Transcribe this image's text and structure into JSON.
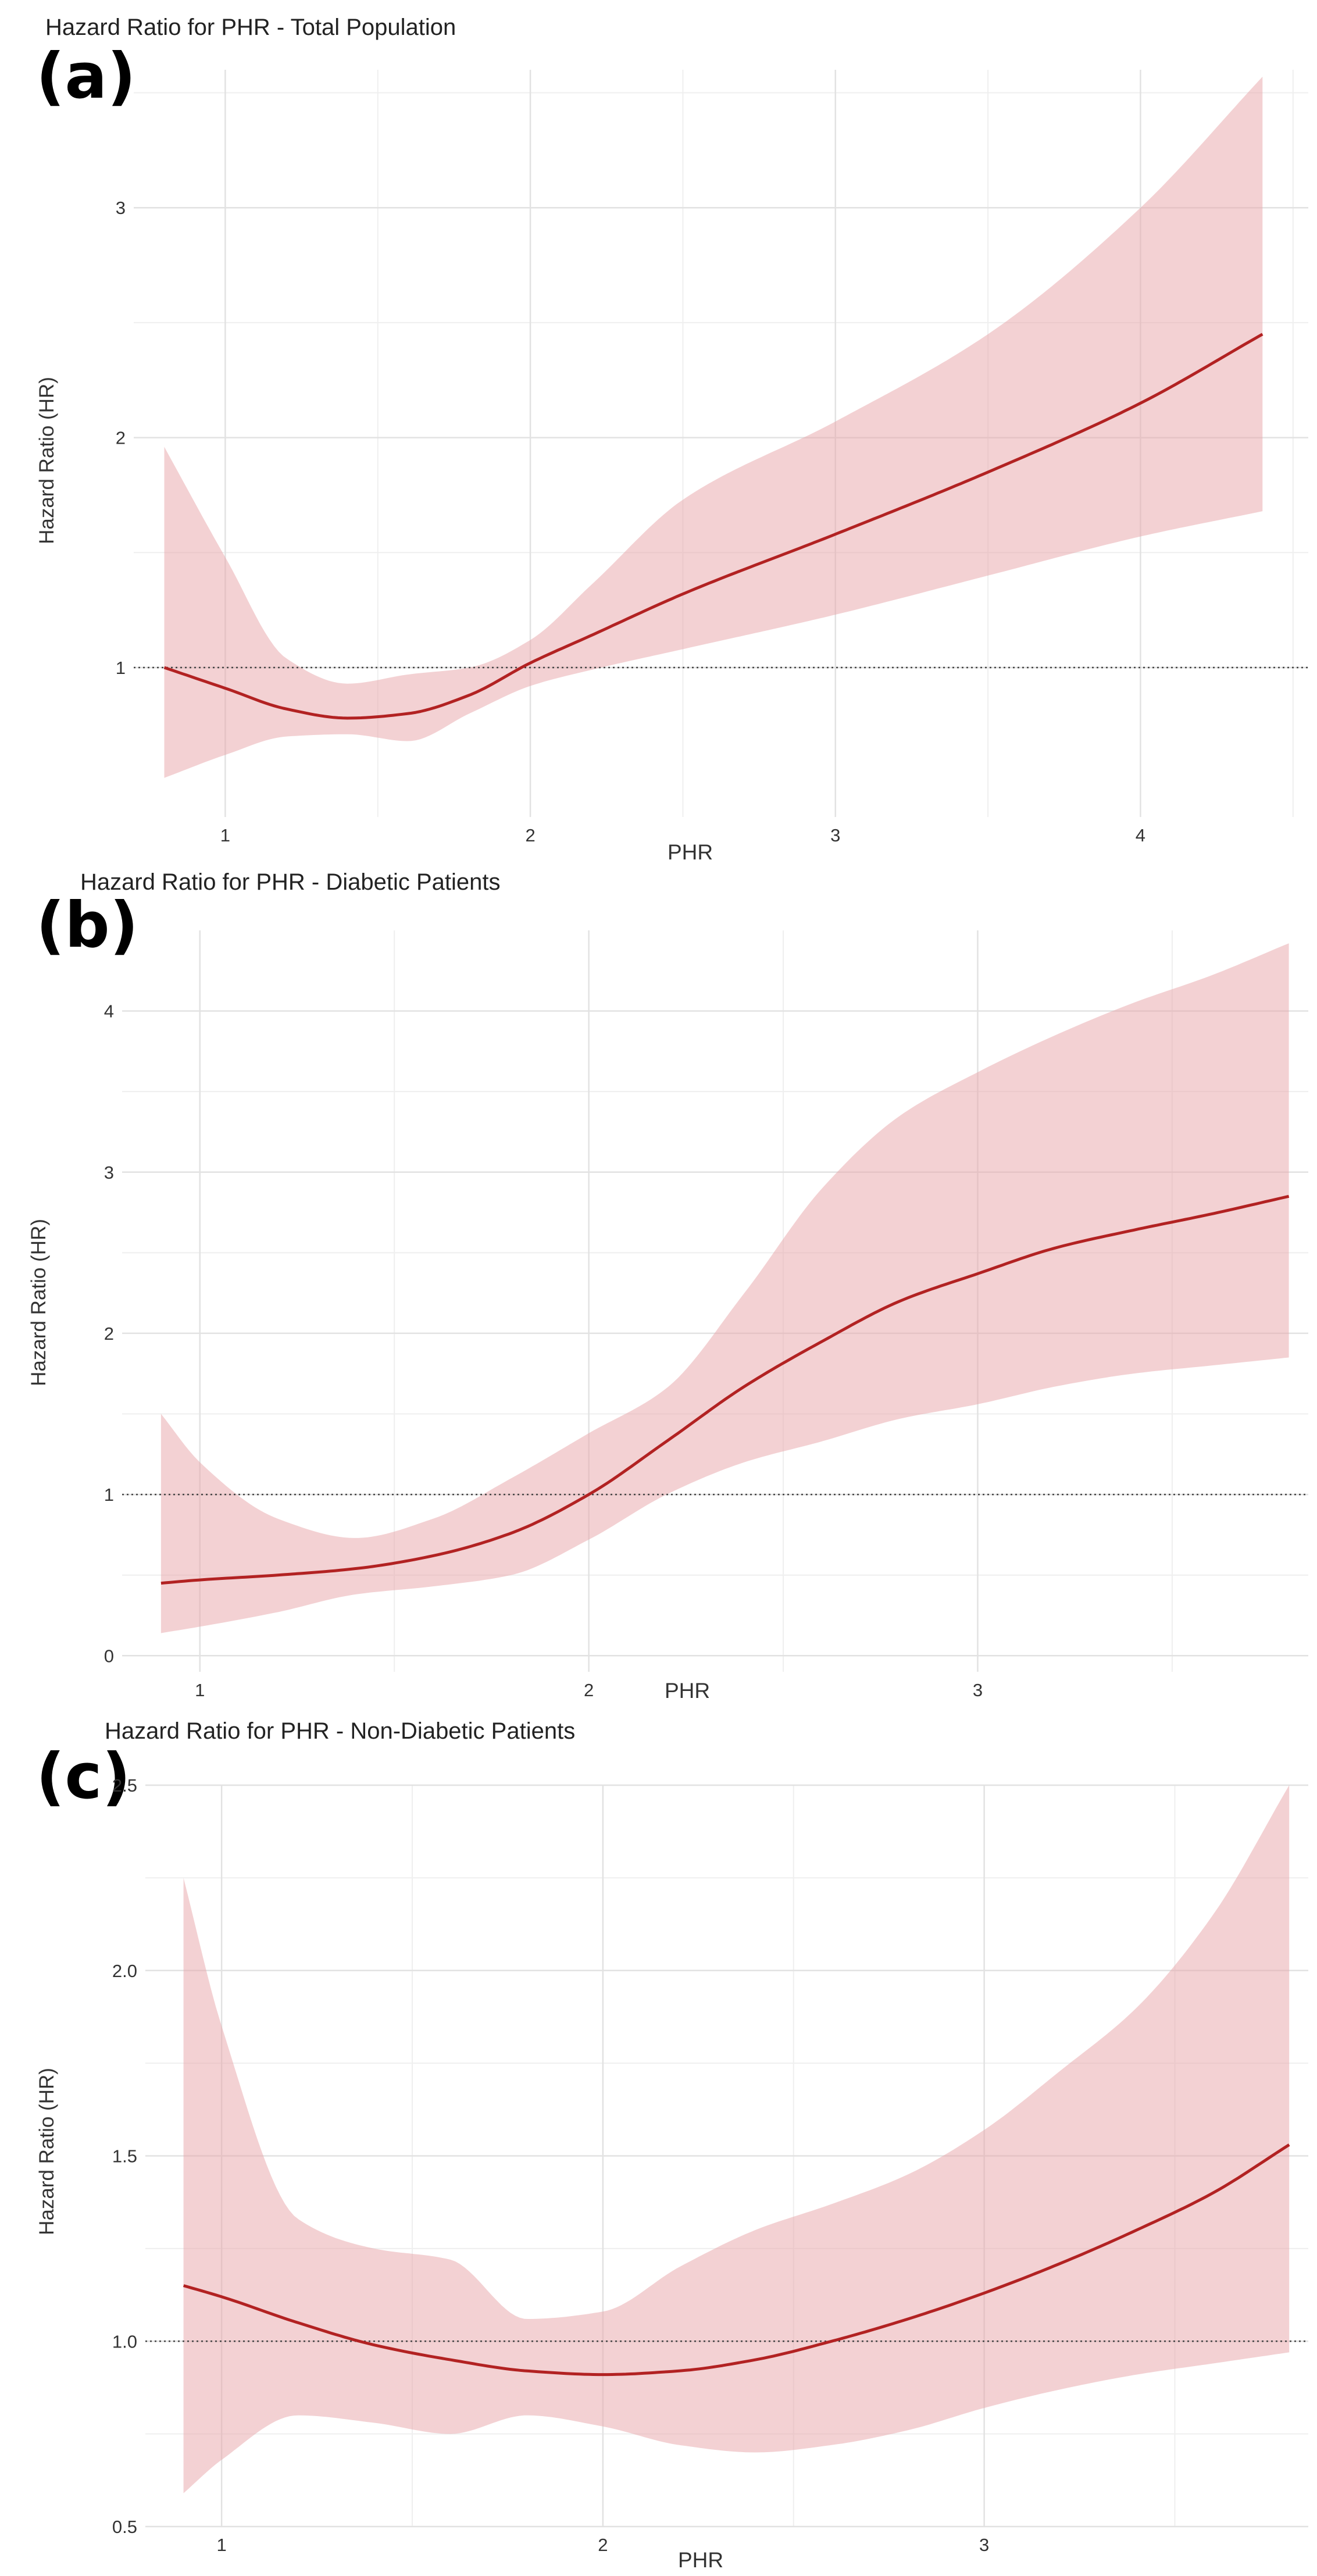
{
  "colors": {
    "line": "#b22222",
    "band": "#e8a3a8",
    "grid_major": "#e2e2e2",
    "grid_minor": "#efefef",
    "ref_line": "#444444",
    "text": "#333333"
  },
  "chart_data": [
    {
      "type": "line",
      "panel_label": "(a)",
      "title": "Hazard Ratio for PHR - Total Population",
      "xlabel": "PHR",
      "ylabel": "Hazard Ratio (HR)",
      "xlim": [
        0.7,
        4.55
      ],
      "ylim": [
        0.35,
        3.6
      ],
      "xticks": [
        1,
        2,
        3,
        4
      ],
      "xtick_labels": [
        "1",
        "2",
        "3",
        "4"
      ],
      "yticks": [
        1,
        2,
        3
      ],
      "ytick_labels": [
        "1",
        "2",
        "3"
      ],
      "reference_hr": 1,
      "series": [
        {
          "name": "HR",
          "x": [
            0.8,
            1.0,
            1.2,
            1.4,
            1.6,
            1.8,
            2.0,
            2.2,
            2.5,
            3.0,
            3.5,
            4.0,
            4.4
          ],
          "y": [
            1.0,
            0.91,
            0.82,
            0.78,
            0.8,
            0.88,
            1.02,
            1.14,
            1.32,
            1.58,
            1.85,
            2.15,
            2.45
          ],
          "lower": [
            0.52,
            0.62,
            0.7,
            0.71,
            0.68,
            0.8,
            0.92,
            0.99,
            1.08,
            1.23,
            1.4,
            1.57,
            1.68
          ],
          "upper": [
            1.96,
            1.48,
            1.04,
            0.93,
            0.97,
            1.0,
            1.12,
            1.36,
            1.73,
            2.07,
            2.45,
            3.0,
            3.57
          ]
        }
      ]
    },
    {
      "type": "line",
      "panel_label": "(b)",
      "title": "Hazard Ratio for PHR - Diabetic Patients",
      "xlabel": "PHR",
      "ylabel": "Hazard Ratio (HR)",
      "xlim": [
        0.8,
        3.85
      ],
      "ylim": [
        -0.1,
        4.5
      ],
      "xticks": [
        1,
        2,
        3
      ],
      "xtick_labels": [
        "1",
        "2",
        "3"
      ],
      "yticks": [
        0,
        1,
        2,
        3,
        4
      ],
      "ytick_labels": [
        "0",
        "1",
        "2",
        "3",
        "4"
      ],
      "reference_hr": 1,
      "series": [
        {
          "name": "HR",
          "x": [
            0.9,
            1.0,
            1.2,
            1.4,
            1.6,
            1.8,
            2.0,
            2.2,
            2.4,
            2.6,
            2.8,
            3.0,
            3.2,
            3.4,
            3.6,
            3.8
          ],
          "y": [
            0.45,
            0.47,
            0.5,
            0.54,
            0.62,
            0.76,
            1.0,
            1.33,
            1.67,
            1.95,
            2.2,
            2.37,
            2.53,
            2.64,
            2.74,
            2.85
          ],
          "lower": [
            0.14,
            0.18,
            0.27,
            0.38,
            0.43,
            0.5,
            0.72,
            1.0,
            1.2,
            1.33,
            1.47,
            1.56,
            1.67,
            1.75,
            1.8,
            1.85
          ],
          "upper": [
            1.5,
            1.2,
            0.85,
            0.73,
            0.85,
            1.1,
            1.38,
            1.66,
            2.25,
            2.9,
            3.35,
            3.62,
            3.85,
            4.05,
            4.22,
            4.42
          ]
        }
      ]
    },
    {
      "type": "line",
      "panel_label": "(c)",
      "title": "Hazard Ratio for PHR - Non-Diabetic Patients",
      "xlabel": "PHR",
      "ylabel": "Hazard Ratio (HR)",
      "xlim": [
        0.8,
        3.85
      ],
      "ylim": [
        0.5,
        2.5
      ],
      "xticks": [
        1,
        2,
        3
      ],
      "xtick_labels": [
        "1",
        "2",
        "3"
      ],
      "yticks": [
        0.5,
        1.0,
        1.5,
        2.0,
        2.5
      ],
      "ytick_labels": [
        "0.5",
        "1.0",
        "1.5",
        "2.0",
        "2.5"
      ],
      "reference_hr": 1,
      "series": [
        {
          "name": "HR",
          "x": [
            0.9,
            1.0,
            1.2,
            1.4,
            1.6,
            1.8,
            2.0,
            2.2,
            2.4,
            2.6,
            2.8,
            3.0,
            3.2,
            3.4,
            3.6,
            3.8
          ],
          "y": [
            1.15,
            1.12,
            1.05,
            0.99,
            0.95,
            0.92,
            0.91,
            0.92,
            0.95,
            1.0,
            1.06,
            1.13,
            1.21,
            1.3,
            1.4,
            1.53
          ],
          "lower": [
            0.59,
            0.68,
            0.8,
            0.78,
            0.75,
            0.8,
            0.77,
            0.72,
            0.7,
            0.72,
            0.76,
            0.82,
            0.87,
            0.91,
            0.94,
            0.97
          ],
          "upper": [
            2.25,
            1.85,
            1.33,
            1.25,
            1.22,
            1.06,
            1.08,
            1.2,
            1.3,
            1.37,
            1.45,
            1.57,
            1.73,
            1.9,
            2.15,
            2.5
          ]
        }
      ]
    }
  ]
}
